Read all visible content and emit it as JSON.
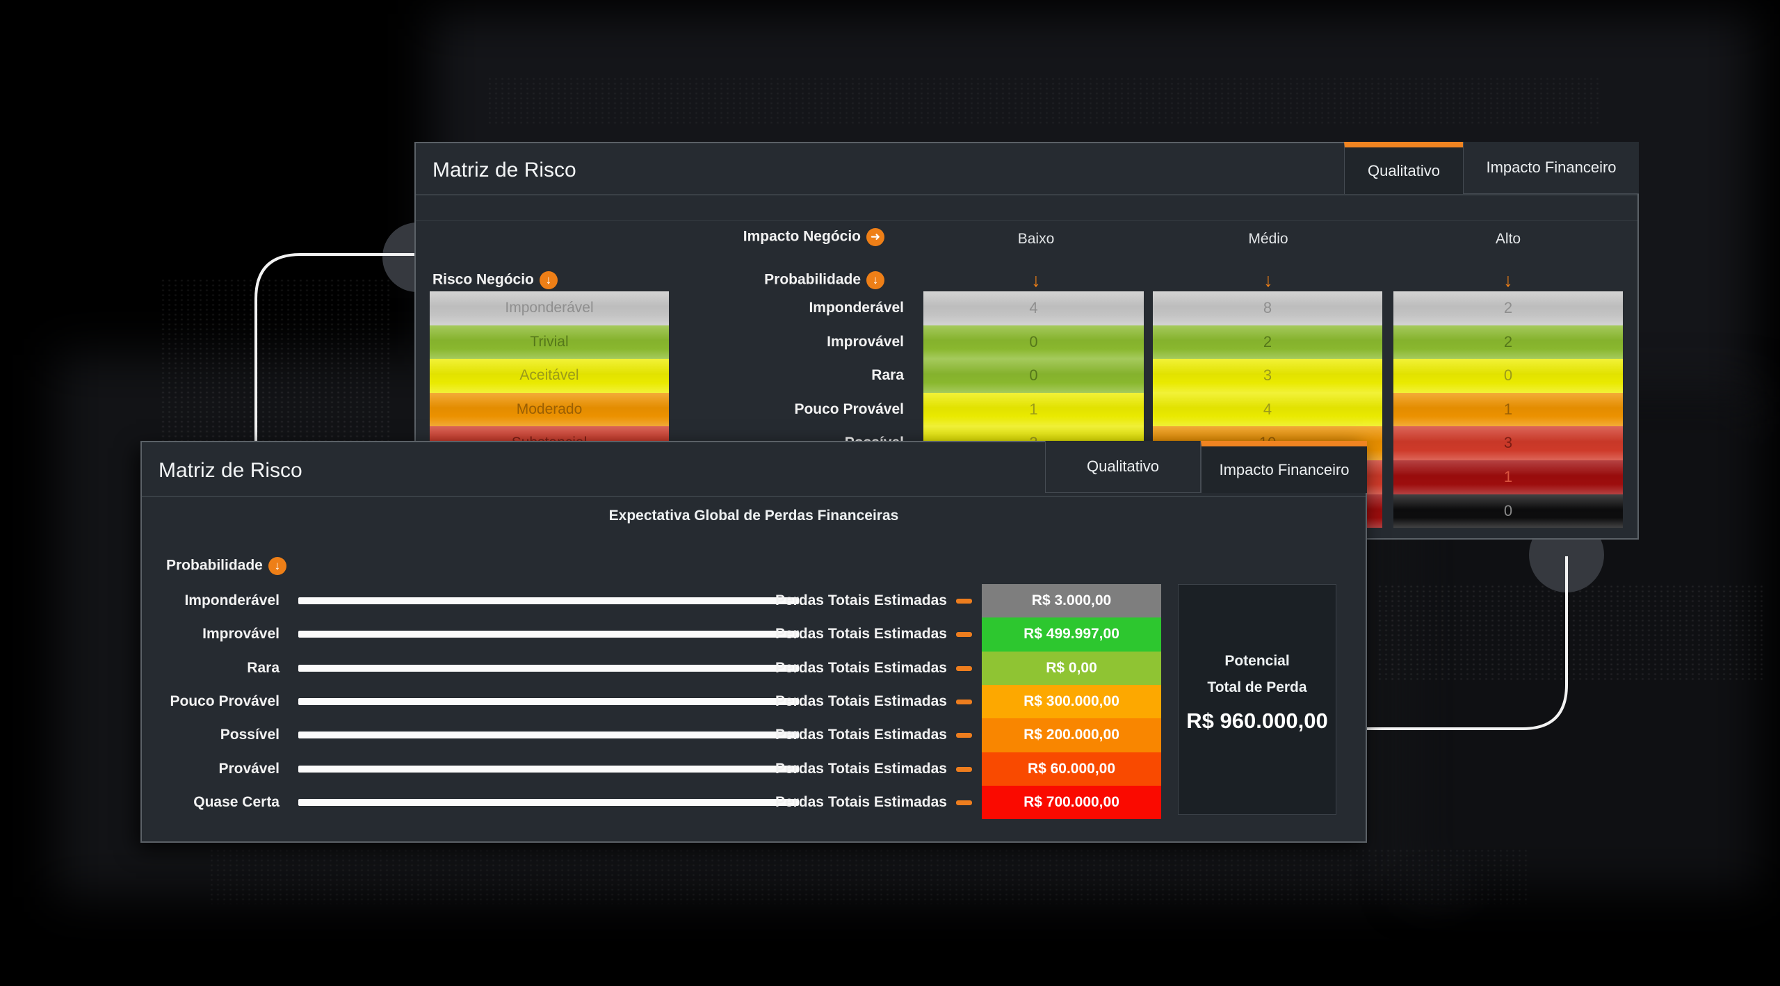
{
  "accent": "#ee7f17",
  "icons": {
    "arrow_right": "➜",
    "arrow_down": "↓"
  },
  "palette": {
    "silver": {
      "bg": "#c7c7c7",
      "text": "#8f8f8f"
    },
    "green": {
      "bg": "#8cbb2f",
      "text": "#55771a"
    },
    "yellow": {
      "bg": "#eeee00",
      "text": "#9a9a1a"
    },
    "orange": {
      "bg": "#f09400",
      "text": "#995f04"
    },
    "red": {
      "bg": "#d23b2a",
      "text": "#7c1d14"
    },
    "darkred": {
      "bg": "#a00d0d",
      "text": "#d9543f"
    },
    "black": {
      "bg": "#0d0d0e",
      "text": "#8a8a8a"
    }
  },
  "qualitative_panel": {
    "title": "Matriz de Risco",
    "tabs": [
      {
        "label": "Qualitativo",
        "active": true
      },
      {
        "label": "Impacto Financeiro",
        "active": false
      }
    ],
    "impact_axis_label": "Impacto Negócio",
    "probability_axis_label": "Probabilidade",
    "risk_axis_label": "Risco Negócio",
    "impact_levels": [
      "Baixo",
      "Médio",
      "Alto"
    ],
    "column_sort_arrow": "↓",
    "risk_levels": [
      {
        "label": "Imponderável",
        "color": "silver"
      },
      {
        "label": "Trivial",
        "color": "green"
      },
      {
        "label": "Aceitável",
        "color": "yellow"
      },
      {
        "label": "Moderado",
        "color": "orange"
      },
      {
        "label": "Substancial",
        "color": "red"
      }
    ],
    "rows": [
      {
        "label": "Imponderável",
        "cells": [
          {
            "value": "4",
            "color": "silver"
          },
          {
            "value": "8",
            "color": "silver"
          },
          {
            "value": "2",
            "color": "silver"
          }
        ]
      },
      {
        "label": "Improvável",
        "cells": [
          {
            "value": "0",
            "color": "green"
          },
          {
            "value": "2",
            "color": "green"
          },
          {
            "value": "2",
            "color": "green"
          }
        ]
      },
      {
        "label": "Rara",
        "cells": [
          {
            "value": "0",
            "color": "green"
          },
          {
            "value": "3",
            "color": "yellow"
          },
          {
            "value": "0",
            "color": "yellow"
          }
        ]
      },
      {
        "label": "Pouco Provável",
        "cells": [
          {
            "value": "1",
            "color": "yellow"
          },
          {
            "value": "4",
            "color": "yellow"
          },
          {
            "value": "1",
            "color": "orange"
          }
        ]
      },
      {
        "label": "Possível",
        "cells": [
          {
            "value": "3",
            "color": "yellow"
          },
          {
            "value": "10",
            "color": "orange"
          },
          {
            "value": "3",
            "color": "red"
          }
        ]
      },
      {
        "label": "",
        "cells": [
          {
            "value": "",
            "color": "red"
          },
          {
            "value": "",
            "color": "red"
          },
          {
            "value": "1",
            "color": "darkred"
          }
        ]
      },
      {
        "label": "",
        "cells": [
          {
            "value": "",
            "color": "red"
          },
          {
            "value": "",
            "color": "darkred"
          },
          {
            "value": "0",
            "color": "black"
          }
        ]
      }
    ]
  },
  "financial_panel": {
    "title": "Matriz de Risco",
    "tabs": [
      {
        "label": "Qualitativo",
        "active": false
      },
      {
        "label": "Impacto Financeiro",
        "active": true
      }
    ],
    "section_title": "Expectativa Global de Perdas Financeiras",
    "probability_axis_label": "Probabilidade",
    "loss_row_label": "Perdas Totais Estimadas",
    "rows": [
      {
        "label": "Imponderável",
        "value": "R$ 3.000,00",
        "chip_color": "#7e7e7e"
      },
      {
        "label": "Improvável",
        "value": "R$ 499.997,00",
        "chip_color": "#2dc72f"
      },
      {
        "label": "Rara",
        "value": "R$ 0,00",
        "chip_color": "#8fc433"
      },
      {
        "label": "Pouco Provável",
        "value": "R$ 300.000,00",
        "chip_color": "#fda800"
      },
      {
        "label": "Possível",
        "value": "R$ 200.000,00",
        "chip_color": "#f98600"
      },
      {
        "label": "Provável",
        "value": "R$ 60.000,00",
        "chip_color": "#f94a00"
      },
      {
        "label": "Quase Certa",
        "value": "R$ 700.000,00",
        "chip_color": "#fa0a00"
      }
    ],
    "total": {
      "label_line1": "Potencial",
      "label_line2": "Total de Perda",
      "value": "R$ 960.000,00"
    }
  }
}
